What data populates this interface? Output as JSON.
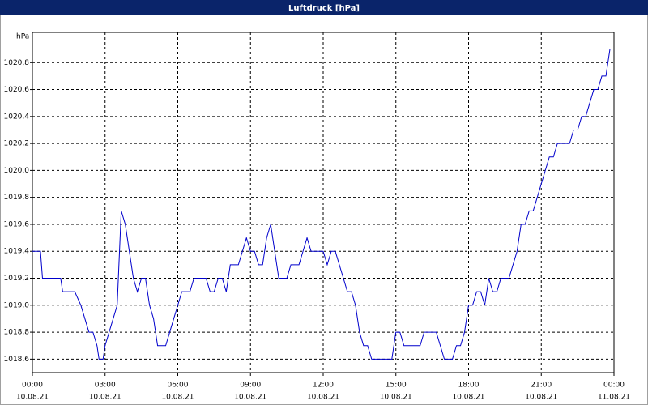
{
  "chart_data": {
    "type": "line",
    "title": "Luftdruck [hPa]",
    "y_label": "hPa",
    "color": "#0000cc",
    "grid": true,
    "xlim": [
      0,
      1440
    ],
    "ylim": [
      1018.5,
      1021.0
    ],
    "xticks": [
      {
        "value": 0,
        "label": "00:00"
      },
      {
        "value": 180,
        "label": "03:00"
      },
      {
        "value": 360,
        "label": "06:00"
      },
      {
        "value": 540,
        "label": "09:00"
      },
      {
        "value": 720,
        "label": "12:00"
      },
      {
        "value": 900,
        "label": "15:00"
      },
      {
        "value": 1080,
        "label": "18:00"
      },
      {
        "value": 1260,
        "label": "21:00"
      },
      {
        "value": 1440,
        "label": "00:00"
      }
    ],
    "xtick_dates": [
      "10.08.21",
      "10.08.21",
      "10.08.21",
      "10.08.21",
      "10.08.21",
      "10.08.21",
      "10.08.21",
      "10.08.21",
      "11.08.21"
    ],
    "yticks": [
      {
        "value": 1018.6,
        "label": "1018,6"
      },
      {
        "value": 1018.8,
        "label": "1018,8"
      },
      {
        "value": 1019.0,
        "label": "1019,0"
      },
      {
        "value": 1019.2,
        "label": "1019,2"
      },
      {
        "value": 1019.4,
        "label": "1019,4"
      },
      {
        "value": 1019.6,
        "label": "1019,6"
      },
      {
        "value": 1019.8,
        "label": "1019,8"
      },
      {
        "value": 1020.0,
        "label": "1020,0"
      },
      {
        "value": 1020.2,
        "label": "1020,2"
      },
      {
        "value": 1020.4,
        "label": "1020,4"
      },
      {
        "value": 1020.6,
        "label": "1020,6"
      },
      {
        "value": 1020.8,
        "label": "1020,8"
      }
    ],
    "x": [
      0,
      20,
      25,
      70,
      75,
      105,
      120,
      130,
      140,
      150,
      160,
      165,
      175,
      180,
      190,
      200,
      210,
      220,
      230,
      240,
      250,
      260,
      270,
      280,
      290,
      300,
      310,
      330,
      340,
      350,
      360,
      370,
      390,
      400,
      430,
      440,
      450,
      460,
      470,
      480,
      490,
      510,
      520,
      530,
      540,
      550,
      560,
      570,
      580,
      590,
      600,
      610,
      630,
      640,
      660,
      670,
      680,
      690,
      720,
      730,
      740,
      750,
      760,
      770,
      780,
      790,
      800,
      810,
      820,
      830,
      840,
      890,
      900,
      910,
      920,
      960,
      970,
      1000,
      1010,
      1020,
      1040,
      1050,
      1060,
      1070,
      1080,
      1090,
      1100,
      1110,
      1120,
      1130,
      1140,
      1150,
      1160,
      1180,
      1190,
      1200,
      1210,
      1220,
      1230,
      1240,
      1250,
      1260,
      1270,
      1280,
      1290,
      1300,
      1330,
      1340,
      1350,
      1360,
      1370,
      1380,
      1390,
      1400,
      1410,
      1420,
      1430
    ],
    "values": [
      1019.4,
      1019.4,
      1019.2,
      1019.2,
      1019.1,
      1019.1,
      1019.0,
      1018.9,
      1018.8,
      1018.8,
      1018.7,
      1018.6,
      1018.6,
      1018.7,
      1018.8,
      1018.9,
      1019.0,
      1019.7,
      1019.6,
      1019.4,
      1019.2,
      1019.1,
      1019.2,
      1019.2,
      1019.0,
      1018.9,
      1018.7,
      1018.7,
      1018.8,
      1018.9,
      1019.0,
      1019.1,
      1019.1,
      1019.2,
      1019.2,
      1019.1,
      1019.1,
      1019.2,
      1019.2,
      1019.1,
      1019.3,
      1019.3,
      1019.4,
      1019.5,
      1019.4,
      1019.4,
      1019.3,
      1019.3,
      1019.5,
      1019.6,
      1019.4,
      1019.2,
      1019.2,
      1019.3,
      1019.3,
      1019.4,
      1019.5,
      1019.4,
      1019.4,
      1019.3,
      1019.4,
      1019.4,
      1019.3,
      1019.2,
      1019.1,
      1019.1,
      1019.0,
      1018.8,
      1018.7,
      1018.7,
      1018.6,
      1018.6,
      1018.8,
      1018.8,
      1018.7,
      1018.7,
      1018.8,
      1018.8,
      1018.7,
      1018.6,
      1018.6,
      1018.7,
      1018.7,
      1018.8,
      1019.0,
      1019.0,
      1019.1,
      1019.1,
      1019.0,
      1019.2,
      1019.1,
      1019.1,
      1019.2,
      1019.2,
      1019.3,
      1019.4,
      1019.6,
      1019.6,
      1019.7,
      1019.7,
      1019.8,
      1019.9,
      1020.0,
      1020.1,
      1020.1,
      1020.2,
      1020.2,
      1020.3,
      1020.3,
      1020.4,
      1020.4,
      1020.5,
      1020.6,
      1020.6,
      1020.7,
      1020.7,
      1020.9
    ]
  }
}
